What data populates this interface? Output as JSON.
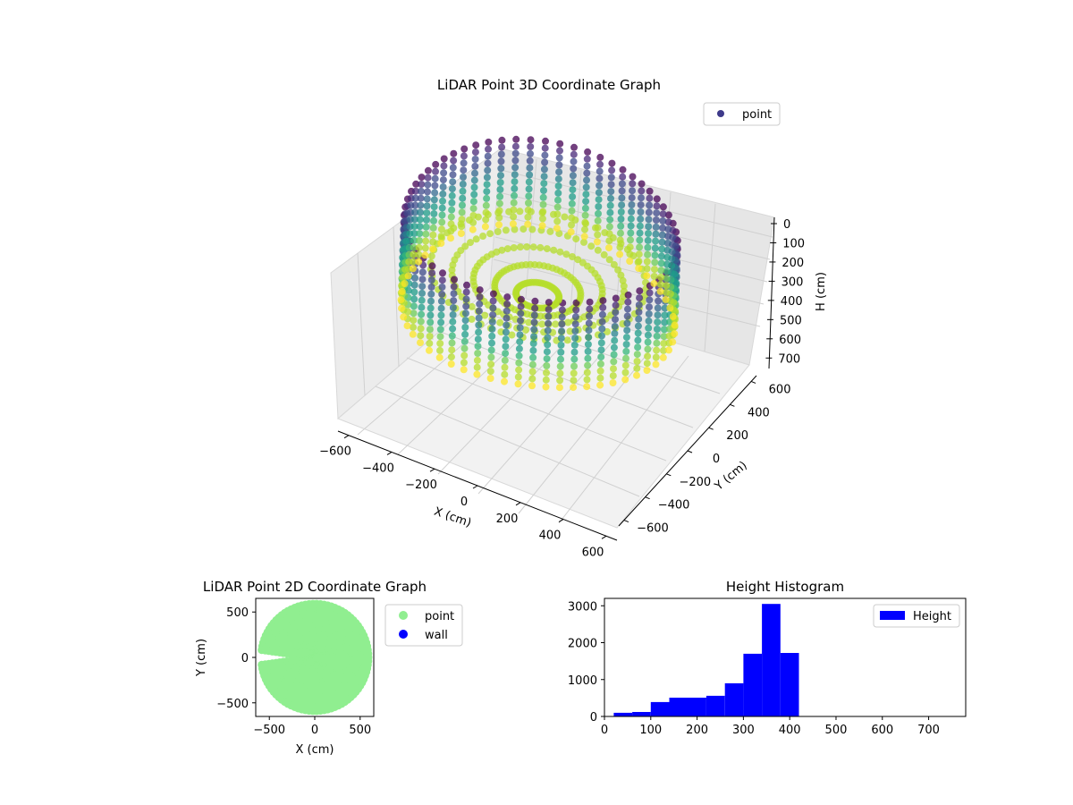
{
  "chart_data": [
    {
      "type": "scatter3d",
      "title": "LiDAR Point 3D Coordinate Graph",
      "xlabel": "X (cm)",
      "ylabel": "Y (cm)",
      "zlabel": "H (cm)",
      "x_ticks": [
        -600,
        -400,
        -200,
        0,
        200,
        400,
        600
      ],
      "y_ticks": [
        600,
        400,
        200,
        0,
        -200,
        -400,
        -600
      ],
      "z_ticks": [
        0,
        100,
        200,
        300,
        400,
        500,
        600,
        700
      ],
      "xlim": [
        -650,
        650
      ],
      "ylim": [
        -650,
        650
      ],
      "zlim": [
        0,
        750
      ],
      "z_inverted": true,
      "grid": true,
      "legend": {
        "placement": "top-right",
        "entries": [
          {
            "name": "point",
            "color": "#3e3a8a"
          }
        ]
      },
      "colormap": "viridis",
      "approx_shape": {
        "kind": "ring-with-spokes",
        "radius_cm": 600,
        "height_range_cm": [
          0,
          420
        ]
      }
    },
    {
      "type": "scatter",
      "title": "LiDAR Point 2D Coordinate Graph",
      "xlabel": "X (cm)",
      "ylabel": "Y (cm)",
      "x_ticks": [
        -500,
        0,
        500
      ],
      "y_ticks": [
        500,
        0,
        -500
      ],
      "xlim": [
        -650,
        650
      ],
      "ylim": [
        -650,
        650
      ],
      "legend": {
        "placement": "outside-right",
        "entries": [
          {
            "name": "point",
            "color": "#90ee90"
          },
          {
            "name": "wall",
            "color": "#0000ff"
          }
        ]
      },
      "approx_shape": {
        "kind": "disc",
        "radius_cm": 600,
        "notch_direction": "left",
        "notch_angle_deg": [
          172,
          188
        ]
      }
    },
    {
      "type": "bar",
      "title": "Height Histogram",
      "xlabel": "",
      "ylabel": "",
      "x_ticks": [
        0,
        100,
        200,
        300,
        400,
        500,
        600,
        700
      ],
      "y_ticks": [
        0,
        1000,
        2000,
        3000
      ],
      "xlim": [
        0,
        780
      ],
      "ylim": [
        0,
        3200
      ],
      "bin_edges": [
        20,
        60,
        100,
        140,
        220,
        260,
        300,
        340,
        380,
        420
      ],
      "series": [
        {
          "name": "Height",
          "color": "#0000ff",
          "values": [
            100,
            120,
            390,
            510,
            560,
            900,
            1700,
            3050,
            1720
          ]
        }
      ],
      "legend": {
        "placement": "top-right"
      }
    }
  ]
}
